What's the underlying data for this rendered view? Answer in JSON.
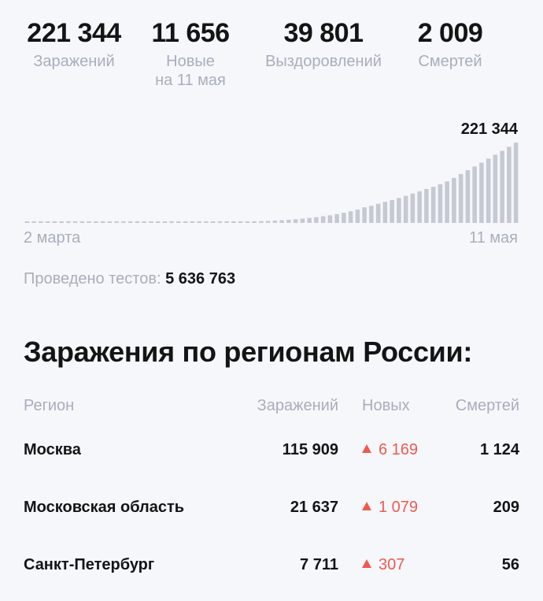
{
  "stats": [
    {
      "value": "221 344",
      "label": "Заражений"
    },
    {
      "value": "11 656",
      "label": "Новые",
      "sublabel": "на 11 мая"
    },
    {
      "value": "39 801",
      "label": "Выздоровлений"
    },
    {
      "value": "2 009",
      "label": "Смертей"
    }
  ],
  "colors": {
    "bar": "#c5c9d2",
    "muted": "#a9aebb",
    "accent_red": "#ee5b4e",
    "background": "#f5f7fb"
  },
  "chart_data": {
    "type": "bar",
    "x_start_label": "2 марта",
    "x_end_label": "11 мая",
    "peak_label": "221 344",
    "values": [
      3,
      3,
      3,
      3,
      4,
      4,
      7,
      7,
      10,
      13,
      17,
      20,
      28,
      45,
      59,
      63,
      90,
      114,
      147,
      199,
      253,
      306,
      367,
      438,
      495,
      658,
      840,
      1036,
      1264,
      1534,
      2337,
      2777,
      3548,
      4149,
      4731,
      5389,
      6343,
      7497,
      8672,
      10131,
      11917,
      13584,
      15770,
      18328,
      21102,
      24490,
      27938,
      32008,
      36793,
      42853,
      47121,
      52763,
      57999,
      62773,
      68622,
      74588,
      80949,
      87147,
      93558,
      99399,
      106498,
      114431,
      124054,
      134687,
      145268,
      155370,
      165929,
      177160,
      187859,
      198676,
      209688,
      221344
    ],
    "ylim": [
      0,
      221344
    ]
  },
  "tests": {
    "label": "Проведено тестов:",
    "value": "5 636 763"
  },
  "regions": {
    "title": "Заражения по регионам России:",
    "headers": {
      "region": "Регион",
      "cases": "Заражений",
      "new": "Новых",
      "deaths": "Смертей"
    },
    "rows": [
      {
        "region": "Москва",
        "cases": "115 909",
        "new": "6 169",
        "deaths": "1 124"
      },
      {
        "region": "Московская область",
        "cases": "21 637",
        "new": "1 079",
        "deaths": "209"
      },
      {
        "region": "Санкт-Петербург",
        "cases": "7 711",
        "new": "307",
        "deaths": "56"
      }
    ]
  }
}
